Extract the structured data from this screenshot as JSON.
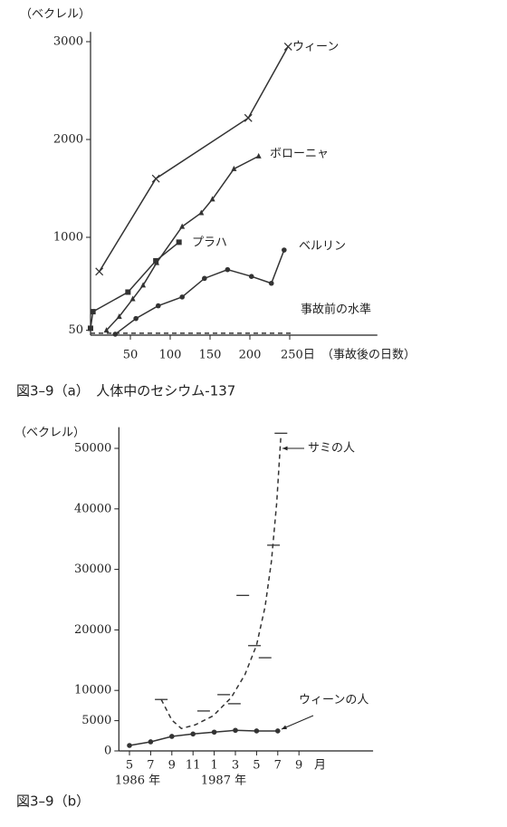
{
  "chart_data": [
    {
      "type": "line",
      "y_label": "（ベクレル）",
      "caption": "図3–9（a）　人体中のセシウム-137",
      "x_label": "（事故後の日数）",
      "xlim": [
        0,
        360
      ],
      "ylim": [
        0,
        3100
      ],
      "xticks": [
        50,
        100,
        150,
        200,
        {
          "value": 250,
          "label": "250日"
        }
      ],
      "yticks": [
        50,
        1000,
        2000,
        3000
      ],
      "grid": false,
      "series": [
        {
          "name": "ウィーン",
          "color": "#333333",
          "marker": "x",
          "dash": false,
          "line": true,
          "x": [
            11,
            82,
            198,
            248
          ],
          "values": [
            650,
            1600,
            2220,
            2950
          ]
        },
        {
          "name": "ボローニャ",
          "color": "#333333",
          "marker": "triangle",
          "dash": false,
          "line": true,
          "x": [
            20,
            36,
            53,
            66,
            83,
            115,
            139,
            153,
            180,
            211
          ],
          "values": [
            50,
            190,
            370,
            510,
            740,
            1110,
            1250,
            1390,
            1700,
            1830
          ]
        },
        {
          "name": "プラハ",
          "color": "#333333",
          "marker": "square",
          "dash": false,
          "line": true,
          "x": [
            0,
            3,
            47,
            82,
            111
          ],
          "values": [
            70,
            240,
            440,
            760,
            950
          ]
        },
        {
          "name": "ベルリン",
          "color": "#333333",
          "marker": "circle",
          "dash": false,
          "line": true,
          "x": [
            31,
            57,
            85,
            115,
            143,
            172,
            202,
            227,
            243
          ],
          "values": [
            10,
            170,
            300,
            390,
            580,
            670,
            600,
            530,
            870
          ]
        },
        {
          "name": "事故前の水準",
          "color": "#333333",
          "marker": "none",
          "dash": true,
          "line": true,
          "x": [
            0,
            255
          ],
          "values": [
            20,
            20
          ]
        }
      ]
    },
    {
      "type": "line",
      "y_label": "（ベクレル）",
      "caption": "図3–9（b）",
      "x_unit": "月",
      "annotations": [
        "1986 年",
        "1987 年"
      ],
      "xlim": [
        -1,
        23
      ],
      "ylim": [
        0,
        53500
      ],
      "xticks": [
        {
          "value": 0,
          "label": "5"
        },
        {
          "value": 2,
          "label": "7"
        },
        {
          "value": 4,
          "label": "9"
        },
        {
          "value": 6,
          "label": "11"
        },
        {
          "value": 8,
          "label": "1"
        },
        {
          "value": 10,
          "label": "3"
        },
        {
          "value": 12,
          "label": "5"
        },
        {
          "value": 14,
          "label": "7"
        },
        {
          "value": 16,
          "label": "9"
        }
      ],
      "yticks": [
        0,
        5000,
        10000,
        20000,
        30000,
        40000,
        50000
      ],
      "grid": false,
      "series": [
        {
          "name": "ウィーンの人",
          "color": "#333333",
          "marker": "circle",
          "dash": false,
          "line": true,
          "x": [
            0,
            2,
            4,
            6,
            8,
            10,
            12,
            14
          ],
          "values": [
            900,
            1500,
            2400,
            2800,
            3100,
            3400,
            3300,
            3300
          ]
        },
        {
          "name": "サミの人",
          "color": "#333333",
          "marker": "hbar",
          "dash": false,
          "line": false,
          "x": [
            3.0,
            7.0,
            8.9,
            9.9,
            10.7,
            11.8,
            12.8,
            13.6,
            14.3
          ],
          "values": [
            8500,
            6600,
            9300,
            7800,
            25700,
            17400,
            15400,
            34000,
            52500
          ]
        },
        {
          "color": "#333333",
          "marker": "none",
          "dash": true,
          "line": true,
          "x": [
            3,
            4,
            4.9,
            6.2,
            7.9,
            9.6,
            10.9,
            12,
            12.8,
            13.4,
            13.9,
            14.3
          ],
          "values": [
            8500,
            5100,
            3700,
            4300,
            5800,
            8800,
            12600,
            17500,
            23800,
            31300,
            41000,
            52200
          ]
        }
      ]
    }
  ]
}
